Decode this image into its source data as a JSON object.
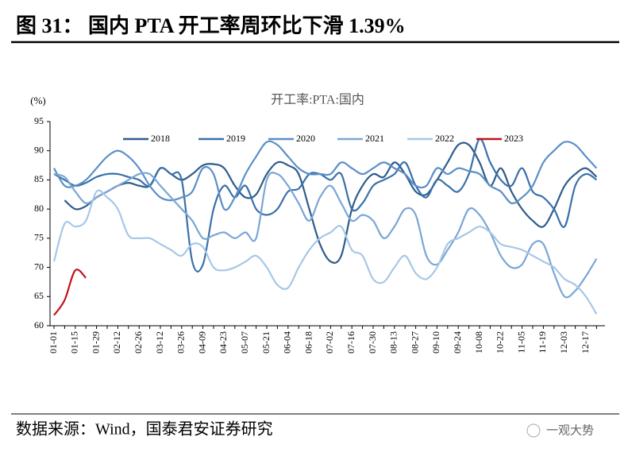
{
  "header": {
    "title": "图 31： 国内 PTA 开工率周环比下滑 1.39%"
  },
  "chart_data": {
    "type": "line",
    "title": "开工率:PTA:国内",
    "y_label": "(%)",
    "categories": [
      "01-01",
      null,
      "01-15",
      null,
      "01-29",
      null,
      "02-12",
      null,
      "02-26",
      null,
      "03-12",
      null,
      "03-26",
      null,
      "04-09",
      null,
      "04-23",
      null,
      "05-07",
      null,
      "05-21",
      null,
      "06-04",
      null,
      "06-18",
      null,
      "07-02",
      null,
      "07-16",
      null,
      "07-30",
      null,
      "08-13",
      null,
      "08-27",
      null,
      "09-10",
      null,
      "09-24",
      null,
      "10-08",
      null,
      "10-22",
      null,
      "11-05",
      null,
      "11-19",
      null,
      "12-03",
      null,
      "12-17",
      null
    ],
    "ylim": [
      60,
      95
    ],
    "yticks": [
      60,
      65,
      70,
      75,
      80,
      85,
      90,
      95
    ],
    "grid": false,
    "legend": "top",
    "series": [
      {
        "name": "2018",
        "color": "#2e5c8a",
        "values": [
          null,
          81.5,
          80,
          80.5,
          82,
          83,
          84,
          84.5,
          84,
          84,
          87,
          86,
          85,
          86,
          87.5,
          87.7,
          87,
          84,
          82,
          82.5,
          86,
          88,
          87.5,
          86,
          80,
          74,
          71,
          72,
          80,
          84,
          86,
          85.5,
          88,
          86,
          83,
          82.5,
          85,
          88,
          91,
          91,
          88,
          84,
          87,
          83,
          80,
          78,
          77,
          80,
          84,
          86,
          87,
          85.5
        ]
      },
      {
        "name": "2019",
        "color": "#3a70aa",
        "values": [
          86,
          85,
          84,
          84.5,
          85.5,
          86,
          86,
          85.5,
          85,
          84,
          87,
          86,
          85,
          71,
          70.5,
          80,
          84,
          82,
          84,
          80,
          79,
          80,
          83,
          83.5,
          86,
          86,
          85,
          86,
          80,
          81,
          84,
          85,
          86,
          88,
          84,
          82,
          85,
          84,
          83,
          86,
          92,
          88,
          85,
          84,
          87,
          83,
          82,
          80,
          77,
          84,
          86,
          85
        ]
      },
      {
        "name": "2020",
        "color": "#5b8fc6",
        "values": [
          87,
          84,
          84,
          85,
          87,
          89,
          90,
          89,
          87,
          84,
          82,
          81.5,
          82,
          83,
          87,
          86,
          80,
          82,
          86,
          89,
          91.5,
          91,
          89,
          87,
          86,
          86,
          86,
          88,
          87,
          86,
          87,
          88,
          87,
          86,
          84,
          84,
          87,
          86,
          87,
          86.5,
          86,
          84,
          83,
          81,
          82,
          84,
          88,
          90,
          91.5,
          91,
          89,
          87
        ]
      },
      {
        "name": "2021",
        "color": "#7aa6d6",
        "values": [
          86,
          85.5,
          83,
          81,
          82,
          83,
          84,
          85,
          86,
          86,
          84,
          82,
          80,
          78,
          75,
          75.5,
          76,
          75,
          76,
          75,
          85,
          86,
          84,
          81,
          78,
          82,
          84,
          81,
          78,
          79,
          78,
          75,
          77,
          80,
          79,
          72,
          70.5,
          73,
          76,
          80,
          79,
          76,
          72,
          70,
          70.5,
          74,
          74,
          69,
          65,
          66,
          68.5,
          71.5
        ]
      },
      {
        "name": "2022",
        "color": "#a7c7e7",
        "values": [
          71,
          77.5,
          77,
          78,
          83,
          82,
          80,
          75.5,
          75,
          75,
          74,
          73,
          72,
          74,
          73.5,
          70,
          69.5,
          70,
          71,
          72,
          70,
          67,
          66.5,
          70,
          73,
          75,
          76,
          77,
          73,
          72,
          68,
          67.5,
          70,
          72,
          69,
          68,
          70,
          74,
          75,
          76,
          77,
          76,
          74,
          73.5,
          73,
          72,
          71,
          70,
          68,
          67,
          65,
          62
        ]
      },
      {
        "name": "2023",
        "color": "#c0141c",
        "values": [
          61.8,
          64.4,
          69.5,
          68.2,
          null,
          null,
          null,
          null,
          null,
          null,
          null,
          null,
          null,
          null,
          null,
          null,
          null,
          null,
          null,
          null,
          null,
          null,
          null,
          null,
          null,
          null,
          null,
          null,
          null,
          null,
          null,
          null,
          null,
          null,
          null,
          null,
          null,
          null,
          null,
          null,
          null,
          null,
          null,
          null,
          null,
          null,
          null,
          null,
          null,
          null,
          null,
          null
        ]
      }
    ]
  },
  "footer": {
    "source": "数据来源：Wind，国泰君安证券研究",
    "watermark": "一观大势"
  }
}
